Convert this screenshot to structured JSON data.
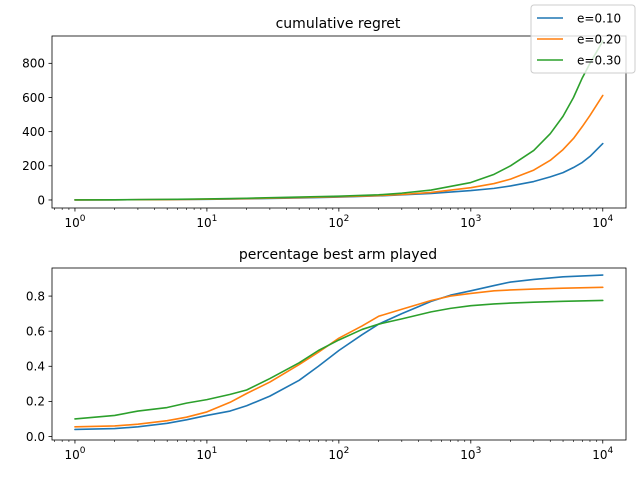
{
  "chart_data": [
    {
      "type": "line",
      "title": "cumulative regret",
      "xscale": "log",
      "xlim": [
        0.67,
        15000
      ],
      "ylim": [
        -47,
        960
      ],
      "x_ticks": [
        {
          "exp": 0
        },
        {
          "exp": 1
        },
        {
          "exp": 2
        },
        {
          "exp": 3
        },
        {
          "exp": 4
        }
      ],
      "y_ticks": [
        0,
        200,
        400,
        600,
        800
      ],
      "x": [
        1,
        2,
        3,
        5,
        10,
        20,
        50,
        100,
        200,
        300,
        500,
        1000,
        1500,
        2000,
        3000,
        4000,
        5000,
        6000,
        7000,
        8000,
        10000
      ],
      "series": [
        {
          "name": "e=0.10",
          "color": "#1f77b4",
          "values": [
            0.5,
            1,
            1.5,
            2.5,
            4,
            7,
            12,
            17,
            24,
            30,
            38,
            55,
            68,
            82,
            108,
            135,
            160,
            190,
            220,
            255,
            330
          ]
        },
        {
          "name": "e=0.20",
          "color": "#ff7f0e",
          "values": [
            0.5,
            1,
            1.5,
            2.5,
            4.5,
            8,
            14,
            19,
            26,
            32,
            44,
            72,
            96,
            122,
            175,
            232,
            295,
            360,
            430,
            495,
            612
          ]
        },
        {
          "name": "e=0.30",
          "color": "#2ca02c",
          "values": [
            0.6,
            1.2,
            2,
            3.5,
            6,
            10,
            17,
            22,
            30,
            40,
            58,
            102,
            150,
            200,
            290,
            388,
            490,
            600,
            715,
            800,
            930
          ]
        }
      ]
    },
    {
      "type": "line",
      "title": "percentage best arm played",
      "xscale": "log",
      "xlim": [
        0.67,
        15000
      ],
      "ylim": [
        -0.02,
        0.96
      ],
      "x_ticks": [
        {
          "exp": 0
        },
        {
          "exp": 1
        },
        {
          "exp": 2
        },
        {
          "exp": 3
        },
        {
          "exp": 4
        }
      ],
      "y_ticks": [
        0.0,
        0.2,
        0.4,
        0.6,
        0.8
      ],
      "x": [
        1,
        2,
        3,
        5,
        7,
        10,
        15,
        20,
        30,
        50,
        70,
        100,
        150,
        200,
        300,
        500,
        700,
        1000,
        1500,
        2000,
        3000,
        5000,
        10000
      ],
      "series": [
        {
          "name": "e=0.10",
          "color": "#1f77b4",
          "values": [
            0.04,
            0.045,
            0.055,
            0.075,
            0.095,
            0.12,
            0.145,
            0.175,
            0.23,
            0.32,
            0.4,
            0.49,
            0.58,
            0.64,
            0.7,
            0.77,
            0.805,
            0.83,
            0.86,
            0.88,
            0.895,
            0.91,
            0.92
          ]
        },
        {
          "name": "e=0.20",
          "color": "#ff7f0e",
          "values": [
            0.055,
            0.06,
            0.07,
            0.09,
            0.11,
            0.14,
            0.195,
            0.245,
            0.31,
            0.41,
            0.48,
            0.56,
            0.63,
            0.685,
            0.725,
            0.775,
            0.8,
            0.815,
            0.83,
            0.835,
            0.84,
            0.845,
            0.85
          ]
        },
        {
          "name": "e=0.30",
          "color": "#2ca02c",
          "values": [
            0.1,
            0.12,
            0.145,
            0.165,
            0.19,
            0.21,
            0.24,
            0.265,
            0.33,
            0.42,
            0.49,
            0.55,
            0.61,
            0.64,
            0.67,
            0.71,
            0.73,
            0.745,
            0.755,
            0.76,
            0.765,
            0.77,
            0.775
          ]
        }
      ]
    }
  ],
  "legend": {
    "placement": "upper right",
    "entries": [
      {
        "label": "e=0.10",
        "color": "#1f77b4"
      },
      {
        "label": "e=0.20",
        "color": "#ff7f0e"
      },
      {
        "label": "e=0.30",
        "color": "#2ca02c"
      }
    ]
  }
}
